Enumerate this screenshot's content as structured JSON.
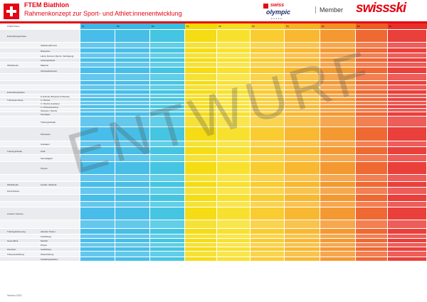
{
  "header": {
    "title": "FTEM Biathlon",
    "subtitle": "Rahmenkonzept zur Sport- und Athlet:innenentwicklung",
    "logo_swiss": "swiss",
    "logo_olympic": "olympic",
    "member": "Member",
    "logo_swissski": "swissski"
  },
  "table": {
    "corner": "FTEM Phase",
    "phases": [
      {
        "code": "F1",
        "color": "#3ab7e8"
      },
      {
        "code": "F2",
        "color": "#38b8e4"
      },
      {
        "code": "F3",
        "color": "#36c0e0"
      },
      {
        "code": "T1",
        "color": "#f4d900"
      },
      {
        "code": "T2",
        "color": "#f7de1c"
      },
      {
        "code": "T3",
        "color": "#f8c820"
      },
      {
        "code": "T4",
        "color": "#f7b21f"
      },
      {
        "code": "E1",
        "color": "#f3901f"
      },
      {
        "code": "E2",
        "color": "#ee5c22"
      },
      {
        "code": "M",
        "color": "#e8302a"
      }
    ],
    "rows": [
      {
        "label1": "Entwicklungsphasen",
        "label2": "",
        "h": 18
      },
      {
        "label1": "",
        "label2": "Wettkampfformat",
        "h": 8
      },
      {
        "label1": "",
        "label2": "Distanzen",
        "h": 7
      },
      {
        "label1": "",
        "label2": "Läufe, Rennen (Sprint, Verfolgung)",
        "h": 7
      },
      {
        "label1": "",
        "label2": "Leistungsstand",
        "h": 6
      },
      {
        "label1": "Wettkämpfe",
        "label2": "Material",
        "h": 7
      },
      {
        "label1": "",
        "label2": "Schiessdistanzen",
        "h": 9
      },
      {
        "label1": "",
        "label2": "",
        "h": 10
      },
      {
        "label1": "",
        "label2": "",
        "h": 6
      },
      {
        "label1": "",
        "label2": "",
        "h": 7
      },
      {
        "label1": "Entwicklungsfokus",
        "label2": "",
        "h": 6
      },
      {
        "label1": "",
        "label2": "& Technik (Physisch & Mental)",
        "h": 5
      },
      {
        "label1": "Trainingsumfang",
        "label2": "h / Woche",
        "h": 5
      },
      {
        "label1": "",
        "label2": "h / Woche Ausdauer",
        "h": 5
      },
      {
        "label1": "",
        "label2": "h / Schiesstraining",
        "h": 5
      },
      {
        "label1": "",
        "label2": "Schüsse / Woche",
        "h": 5
      },
      {
        "label1": "",
        "label2": "Sonstiges",
        "h": 6
      },
      {
        "label1": "",
        "label2": "Trainingsinhalte",
        "h": 15
      },
      {
        "label1": "",
        "label2": "Schiessen",
        "h": 20
      },
      {
        "label1": "",
        "label2": "Ausdauer",
        "h": 8
      },
      {
        "label1": "Trainingsinhalte",
        "label2": "Kraft",
        "h": 11
      },
      {
        "label1": "",
        "label2": "Schnelligkeit",
        "h": 10
      },
      {
        "label1": "",
        "label2": "Psyche",
        "h": 18
      },
      {
        "label1": "",
        "label2": "",
        "h": 10
      },
      {
        "label1": "Wettkämpfe",
        "label2": "Geräte / Material",
        "h": 8
      },
      {
        "label1": "Persönliches",
        "label2": "",
        "h": 10
      },
      {
        "label1": "",
        "label2": "",
        "h": 10
      },
      {
        "label1": "",
        "label2": "",
        "h": 8
      },
      {
        "label1": "Umfeld / Karriere",
        "label2": "",
        "h": 18
      },
      {
        "label1": "",
        "label2": "",
        "h": 12
      },
      {
        "label1": "Trainingsbetreuung",
        "label2": "Aktuelle Trainer",
        "h": 8
      },
      {
        "label1": "",
        "label2": "Fortbildung",
        "h": 6
      },
      {
        "label1": "Gesundheit",
        "label2": "Medizin",
        "h": 6
      },
      {
        "label1": "",
        "label2": "Physio",
        "h": 6
      },
      {
        "label1": "Finanzen",
        "label2": "Ausbildung",
        "h": 6
      },
      {
        "label1": "Trainerausbildung",
        "label2": "Weiterbildung",
        "h": 8
      },
      {
        "label1": "",
        "label2": "Ausbildungsstufen",
        "h": 6
      }
    ]
  },
  "watermark": "ENTWURF",
  "footer": "Version 2023"
}
